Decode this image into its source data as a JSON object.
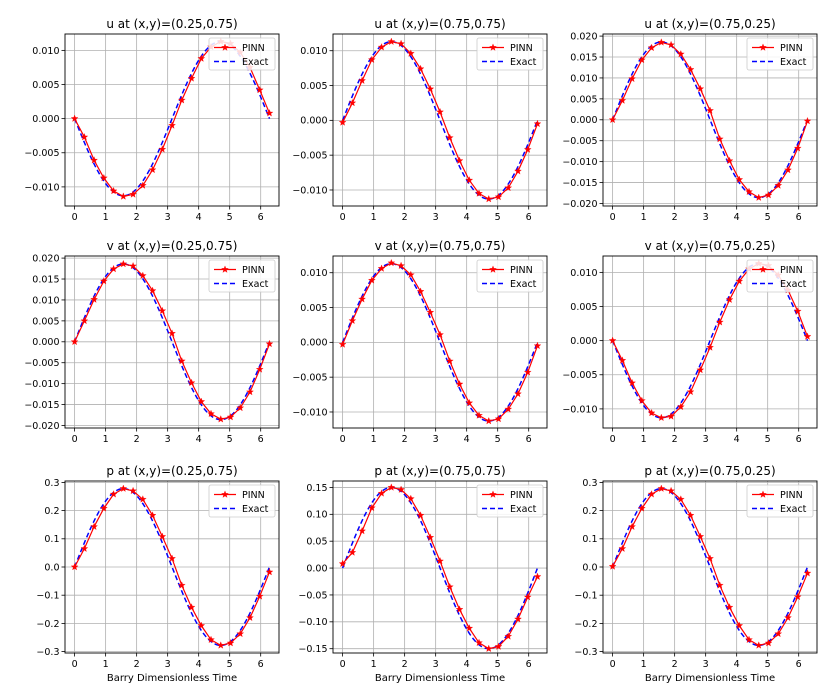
{
  "figure": {
    "xlabel": "Barry Dimensionless Time"
  },
  "colors": {
    "pinn": "#ff0000",
    "exact": "#0000ff",
    "grid": "#b0b0b0",
    "axis": "#000000"
  },
  "chart_data": [
    {
      "type": "line",
      "title": "u at (x,y)=(0.25,0.75)",
      "xlim": [
        -0.31,
        6.59
      ],
      "ylim": [
        -0.0128,
        0.0124
      ],
      "xticks": [
        0,
        1,
        2,
        3,
        4,
        5,
        6
      ],
      "yticks": [
        -0.01,
        -0.005,
        0,
        0.005,
        0.01
      ],
      "ytick_labels": [
        "−0.010",
        "−0.005",
        "0.000",
        "0.005",
        "0.010"
      ],
      "func": "neg_sin",
      "amp": 0.0113,
      "show_xlabel": false,
      "series": [
        {
          "name": "PINN",
          "style": "red-star-line",
          "values": [
            0.0,
            -0.0027,
            -0.0061,
            -0.0087,
            -0.0106,
            -0.0114,
            -0.0111,
            -0.0098,
            -0.0075,
            -0.0045,
            -0.001,
            0.0027,
            0.0059,
            0.0088,
            0.0105,
            0.0113,
            0.011,
            0.0097,
            0.0075,
            0.0042,
            0.0008
          ]
        },
        {
          "name": "Exact",
          "style": "blue-dashed"
        }
      ]
    },
    {
      "type": "line",
      "title": "u at (x,y)=(0.75,0.75)",
      "xlim": [
        -0.31,
        6.59
      ],
      "ylim": [
        -0.0123,
        0.0124
      ],
      "xticks": [
        0,
        1,
        2,
        3,
        4,
        5,
        6
      ],
      "yticks": [
        -0.01,
        -0.005,
        0,
        0.005,
        0.01
      ],
      "ytick_labels": [
        "−0.010",
        "−0.005",
        "0.000",
        "0.005",
        "0.010"
      ],
      "func": "sin",
      "amp": 0.0113,
      "show_xlabel": false,
      "series": [
        {
          "name": "PINN",
          "style": "red-star-line",
          "values": [
            -0.0003,
            0.0025,
            0.0057,
            0.0087,
            0.0105,
            0.0113,
            0.011,
            0.0096,
            0.0074,
            0.0045,
            0.0012,
            -0.0025,
            -0.0058,
            -0.0086,
            -0.0105,
            -0.0113,
            -0.011,
            -0.0097,
            -0.0073,
            -0.0042,
            -0.0005
          ]
        },
        {
          "name": "Exact",
          "style": "blue-dashed"
        }
      ]
    },
    {
      "type": "line",
      "title": "u at (x,y)=(0.75,0.25)",
      "xlim": [
        -0.31,
        6.59
      ],
      "ylim": [
        -0.0206,
        0.0205
      ],
      "xticks": [
        0,
        1,
        2,
        3,
        4,
        5,
        6
      ],
      "yticks": [
        -0.02,
        -0.015,
        -0.01,
        -0.005,
        0,
        0.005,
        0.01,
        0.015,
        0.02
      ],
      "ytick_labels": [
        "−0.020",
        "−0.015",
        "−0.010",
        "−0.005",
        "0.000",
        "0.005",
        "0.010",
        "0.015",
        "0.020"
      ],
      "func": "sin",
      "amp": 0.0186,
      "show_xlabel": false,
      "series": [
        {
          "name": "PINN",
          "style": "red-star-line",
          "values": [
            0.0,
            0.0046,
            0.0098,
            0.0143,
            0.0172,
            0.0185,
            0.0179,
            0.0157,
            0.012,
            0.0074,
            0.0022,
            -0.0046,
            -0.0098,
            -0.0143,
            -0.0172,
            -0.0186,
            -0.018,
            -0.0157,
            -0.012,
            -0.0068,
            -0.0003
          ]
        },
        {
          "name": "Exact",
          "style": "blue-dashed"
        }
      ]
    },
    {
      "type": "line",
      "title": "v at (x,y)=(0.25,0.75)",
      "xlim": [
        -0.31,
        6.59
      ],
      "ylim": [
        -0.0206,
        0.0205
      ],
      "xticks": [
        0,
        1,
        2,
        3,
        4,
        5,
        6
      ],
      "yticks": [
        -0.02,
        -0.015,
        -0.01,
        -0.005,
        0,
        0.005,
        0.01,
        0.015,
        0.02
      ],
      "ytick_labels": [
        "−0.020",
        "−0.015",
        "−0.010",
        "−0.005",
        "0.000",
        "0.005",
        "0.010",
        "0.015",
        "0.020"
      ],
      "func": "sin",
      "amp": 0.0186,
      "show_xlabel": false,
      "series": [
        {
          "name": "PINN",
          "style": "red-star-line",
          "values": [
            0.0,
            0.005,
            0.0101,
            0.0145,
            0.0174,
            0.0186,
            0.0181,
            0.0158,
            0.0122,
            0.0074,
            0.002,
            -0.0046,
            -0.0098,
            -0.0143,
            -0.0172,
            -0.0185,
            -0.018,
            -0.0158,
            -0.012,
            -0.0066,
            -0.0005
          ]
        },
        {
          "name": "Exact",
          "style": "blue-dashed"
        }
      ]
    },
    {
      "type": "line",
      "title": "v at (x,y)=(0.75,0.75)",
      "xlim": [
        -0.31,
        6.59
      ],
      "ylim": [
        -0.0123,
        0.0124
      ],
      "xticks": [
        0,
        1,
        2,
        3,
        4,
        5,
        6
      ],
      "yticks": [
        -0.01,
        -0.005,
        0,
        0.005,
        0.01
      ],
      "ytick_labels": [
        "−0.010",
        "−0.005",
        "0.000",
        "0.005",
        "0.010"
      ],
      "func": "sin",
      "amp": 0.0113,
      "show_xlabel": false,
      "series": [
        {
          "name": "PINN",
          "style": "red-star-line",
          "values": [
            -0.0003,
            0.0031,
            0.0062,
            0.0089,
            0.0106,
            0.0114,
            0.011,
            0.0097,
            0.0073,
            0.0043,
            0.0011,
            -0.0027,
            -0.006,
            -0.0087,
            -0.0105,
            -0.0113,
            -0.011,
            -0.0096,
            -0.0074,
            -0.0043,
            -0.0005
          ]
        },
        {
          "name": "Exact",
          "style": "blue-dashed"
        }
      ]
    },
    {
      "type": "line",
      "title": "v at (x,y)=(0.75,0.25)",
      "xlim": [
        -0.31,
        6.59
      ],
      "ylim": [
        -0.0128,
        0.0124
      ],
      "xticks": [
        0,
        1,
        2,
        3,
        4,
        5,
        6
      ],
      "yticks": [
        -0.01,
        -0.005,
        0,
        0.005,
        0.01
      ],
      "ytick_labels": [
        "−0.010",
        "−0.005",
        "0.000",
        "0.005",
        "0.010"
      ],
      "func": "neg_sin",
      "amp": 0.0113,
      "show_xlabel": false,
      "series": [
        {
          "name": "PINN",
          "style": "red-star-line",
          "values": [
            0.0,
            -0.0029,
            -0.0062,
            -0.0088,
            -0.0106,
            -0.0113,
            -0.0111,
            -0.0097,
            -0.0075,
            -0.0043,
            -0.001,
            0.0027,
            0.006,
            0.0087,
            0.0105,
            0.0113,
            0.011,
            0.0096,
            0.0074,
            0.0043,
            0.0006
          ]
        },
        {
          "name": "Exact",
          "style": "blue-dashed"
        }
      ]
    },
    {
      "type": "line",
      "title": "p at (x,y)=(0.25,0.75)",
      "xlim": [
        -0.31,
        6.59
      ],
      "ylim": [
        -0.305,
        0.305
      ],
      "xticks": [
        0,
        1,
        2,
        3,
        4,
        5,
        6
      ],
      "yticks": [
        -0.3,
        -0.2,
        -0.1,
        0,
        0.1,
        0.2,
        0.3
      ],
      "ytick_labels": [
        "−0.3",
        "−0.2",
        "−0.1",
        "0.0",
        "0.1",
        "0.2",
        "0.3"
      ],
      "func": "sin",
      "amp": 0.278,
      "show_xlabel": true,
      "series": [
        {
          "name": "PINN",
          "style": "red-star-line",
          "values": [
            0.0,
            0.065,
            0.143,
            0.208,
            0.258,
            0.278,
            0.27,
            0.24,
            0.183,
            0.108,
            0.03,
            -0.065,
            -0.143,
            -0.208,
            -0.258,
            -0.278,
            -0.27,
            -0.237,
            -0.18,
            -0.104,
            -0.018
          ]
        },
        {
          "name": "Exact",
          "style": "blue-dashed"
        }
      ]
    },
    {
      "type": "line",
      "title": "p at (x,y)=(0.75,0.75)",
      "xlim": [
        -0.31,
        6.59
      ],
      "ylim": [
        -0.158,
        0.162
      ],
      "xticks": [
        0,
        1,
        2,
        3,
        4,
        5,
        6
      ],
      "yticks": [
        -0.15,
        -0.1,
        -0.05,
        0,
        0.05,
        0.1,
        0.15
      ],
      "ytick_labels": [
        "−0.15",
        "−0.10",
        "−0.05",
        "0.00",
        "0.05",
        "0.10",
        "0.15"
      ],
      "func": "sin",
      "amp": 0.15,
      "show_xlabel": true,
      "series": [
        {
          "name": "PINN",
          "style": "red-star-line",
          "values": [
            0.008,
            0.029,
            0.069,
            0.112,
            0.139,
            0.15,
            0.146,
            0.129,
            0.098,
            0.057,
            0.013,
            -0.035,
            -0.077,
            -0.112,
            -0.139,
            -0.15,
            -0.146,
            -0.127,
            -0.095,
            -0.054,
            -0.016
          ]
        },
        {
          "name": "Exact",
          "style": "blue-dashed"
        }
      ]
    },
    {
      "type": "line",
      "title": "p at (x,y)=(0.75,0.25)",
      "xlim": [
        -0.31,
        6.59
      ],
      "ylim": [
        -0.305,
        0.305
      ],
      "xticks": [
        0,
        1,
        2,
        3,
        4,
        5,
        6
      ],
      "yticks": [
        -0.3,
        -0.2,
        -0.1,
        0,
        0.1,
        0.2,
        0.3
      ],
      "ytick_labels": [
        "−0.3",
        "−0.2",
        "−0.1",
        "0.0",
        "0.1",
        "0.2",
        "0.3"
      ],
      "func": "sin",
      "amp": 0.278,
      "show_xlabel": true,
      "series": [
        {
          "name": "PINN",
          "style": "red-star-line",
          "values": [
            0.002,
            0.065,
            0.143,
            0.208,
            0.258,
            0.278,
            0.27,
            0.24,
            0.183,
            0.108,
            0.03,
            -0.065,
            -0.143,
            -0.208,
            -0.258,
            -0.278,
            -0.27,
            -0.237,
            -0.18,
            -0.106,
            -0.022
          ]
        },
        {
          "name": "Exact",
          "style": "blue-dashed"
        }
      ]
    }
  ]
}
